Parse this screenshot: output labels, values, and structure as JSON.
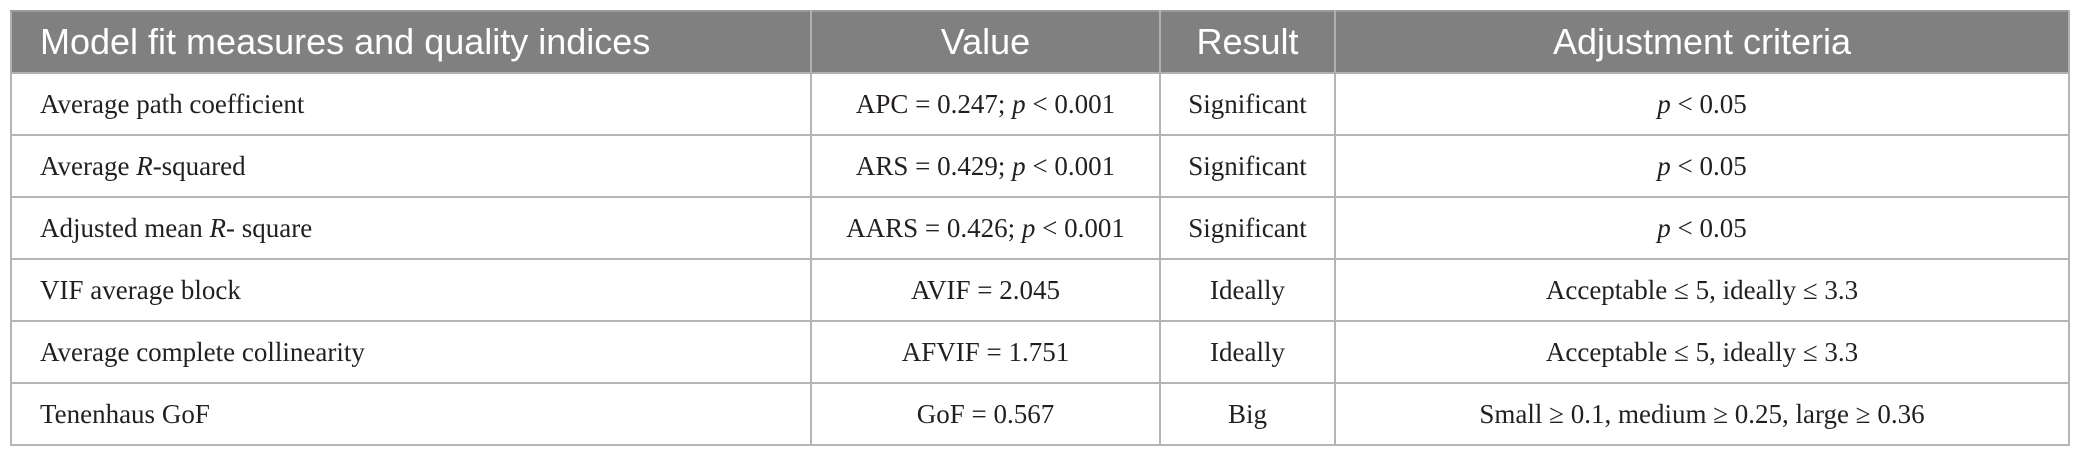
{
  "table": {
    "headers": [
      "Model fit measures and quality indices",
      "Value",
      "Result",
      "Adjustment criteria"
    ],
    "rows": [
      {
        "measure": {
          "pre": "Average path coefficient",
          "it": "",
          "post": ""
        },
        "value": {
          "pre": "APC = 0.247; ",
          "it": "p",
          "post": " < 0.001"
        },
        "result": "Significant",
        "criteria": {
          "pre": "",
          "it": "p",
          "post": " < 0.05"
        }
      },
      {
        "measure": {
          "pre": "Average ",
          "it": "R",
          "post": "-squared"
        },
        "value": {
          "pre": "ARS = 0.429; ",
          "it": "p",
          "post": " < 0.001"
        },
        "result": "Significant",
        "criteria": {
          "pre": "",
          "it": "p",
          "post": " < 0.05"
        }
      },
      {
        "measure": {
          "pre": "Adjusted mean ",
          "it": "R",
          "post": "- square"
        },
        "value": {
          "pre": "AARS = 0.426; ",
          "it": "p",
          "post": " < 0.001"
        },
        "result": "Significant",
        "criteria": {
          "pre": "",
          "it": "p",
          "post": " < 0.05"
        }
      },
      {
        "measure": {
          "pre": "VIF average block",
          "it": "",
          "post": ""
        },
        "value": {
          "pre": "AVIF = 2.045",
          "it": "",
          "post": ""
        },
        "result": "Ideally",
        "criteria": {
          "pre": "Acceptable ≤ 5, ideally ≤ 3.3",
          "it": "",
          "post": ""
        }
      },
      {
        "measure": {
          "pre": "Average complete collinearity",
          "it": "",
          "post": ""
        },
        "value": {
          "pre": "AFVIF = 1.751",
          "it": "",
          "post": ""
        },
        "result": "Ideally",
        "criteria": {
          "pre": "Acceptable ≤ 5, ideally ≤ 3.3",
          "it": "",
          "post": ""
        }
      },
      {
        "measure": {
          "pre": "Tenenhaus GoF",
          "it": "",
          "post": ""
        },
        "value": {
          "pre": "GoF = 0.567",
          "it": "",
          "post": ""
        },
        "result": "Big",
        "criteria": {
          "pre": "Small ≥ 0.1, medium ≥ 0.25, large ≥ 0.36",
          "it": "",
          "post": ""
        }
      }
    ]
  }
}
